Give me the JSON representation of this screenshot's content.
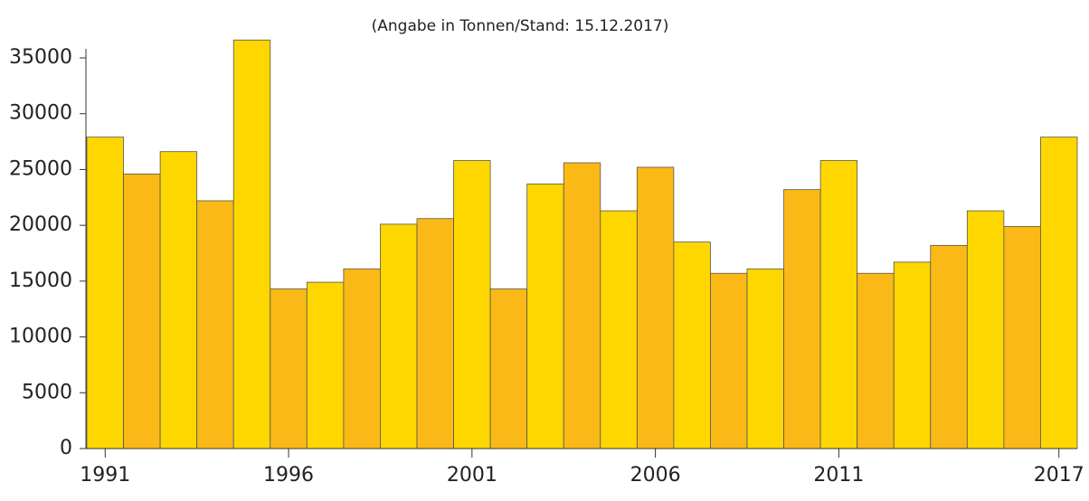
{
  "chart_data": {
    "type": "bar",
    "subtitle": "(Angabe in Tonnen/Stand: 15.12.2017)",
    "categories": [
      "1991",
      null,
      null,
      null,
      null,
      "1996",
      null,
      null,
      null,
      null,
      "2001",
      null,
      null,
      null,
      null,
      "2006",
      null,
      null,
      null,
      null,
      "2011",
      null,
      null,
      null,
      null,
      null,
      "2017"
    ],
    "values": [
      27900,
      24600,
      26600,
      22200,
      36600,
      14300,
      14900,
      16100,
      20100,
      20600,
      25800,
      14300,
      23700,
      25600,
      21300,
      25200,
      18500,
      15700,
      16100,
      23200,
      25800,
      15700,
      16700,
      18200,
      21300,
      19900,
      27900
    ],
    "colors": [
      "#fed700",
      "#fbb917"
    ],
    "ylim": [
      0,
      35000
    ],
    "yticks": [
      0,
      5000,
      10000,
      15000,
      20000,
      25000,
      30000,
      35000
    ],
    "grid": false
  }
}
